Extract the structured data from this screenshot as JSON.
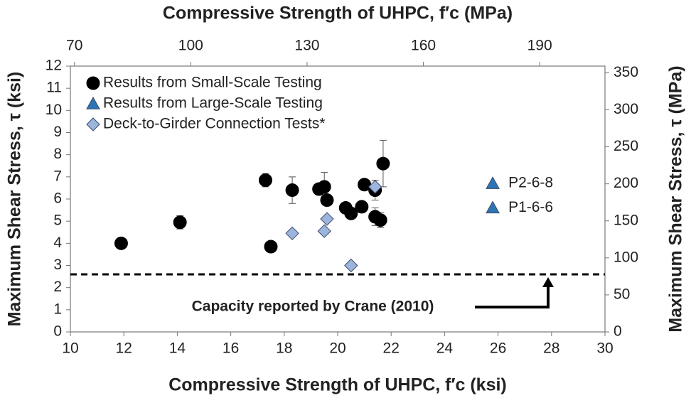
{
  "chart_data": {
    "type": "scatter",
    "xlabel": "Compressive Strength of UHPC, f′c (ksi)",
    "x2label": "Compressive Strength of UHPC, f′c (MPa)",
    "ylabel": "Maximum Shear Stress, τ (ksi)",
    "y2label": "Maximum Shear Stress, τ (MPa)",
    "xlim": [
      10,
      30
    ],
    "xticks": [
      10,
      12,
      14,
      16,
      18,
      20,
      22,
      24,
      26,
      28,
      30
    ],
    "x2lim": [
      68.95,
      206.84
    ],
    "x2ticks": [
      70,
      100,
      130,
      160,
      190
    ],
    "ylim": [
      0,
      12
    ],
    "yticks": [
      0,
      1,
      2,
      3,
      4,
      5,
      6,
      7,
      8,
      9,
      10,
      11,
      12
    ],
    "y2lim": [
      0,
      359
    ],
    "y2ticks": [
      0,
      50,
      100,
      150,
      200,
      250,
      300,
      350
    ],
    "series": [
      {
        "name": "Results from Small-Scale Testing",
        "color": "#000000",
        "marker": "circle",
        "x": [
          11.9,
          14.1,
          17.3,
          17.5,
          18.3,
          19.3,
          19.5,
          19.6,
          20.3,
          20.5,
          20.9,
          21.0,
          21.4,
          21.4,
          21.6,
          21.7
        ],
        "values": [
          4.0,
          4.95,
          6.85,
          3.85,
          6.4,
          6.45,
          6.55,
          5.95,
          5.6,
          5.35,
          5.65,
          6.65,
          6.4,
          5.2,
          5.05,
          7.6
        ],
        "errors": [
          0.15,
          0.3,
          0.3,
          null,
          0.6,
          null,
          0.65,
          0.2,
          null,
          null,
          null,
          null,
          0.45,
          0.4,
          0.35,
          1.05
        ]
      },
      {
        "name": "Results from Large-Scale Testing",
        "color": "#2e75b6",
        "marker": "triangle",
        "x": [
          25.8,
          25.8
        ],
        "values": [
          6.7,
          5.6
        ],
        "point_labels": [
          "P2-6-8",
          "P1-6-6"
        ]
      },
      {
        "name": "Deck-to-Girder Connection Tests*",
        "color": "#9db4dc",
        "marker": "diamond",
        "x": [
          18.3,
          19.5,
          19.6,
          20.5,
          21.4
        ],
        "values": [
          4.45,
          4.55,
          5.1,
          3.0,
          6.55
        ]
      }
    ],
    "reference_line": {
      "value": 2.6,
      "label": "Capacity reported by Crane (2010)"
    }
  }
}
